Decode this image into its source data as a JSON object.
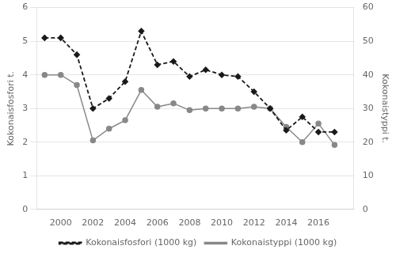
{
  "chart_data": {
    "type": "line",
    "x": [
      1999,
      2000,
      2001,
      2002,
      2003,
      2004,
      2005,
      2006,
      2007,
      2008,
      2009,
      2010,
      2011,
      2012,
      2013,
      2014,
      2015,
      2016,
      2017
    ],
    "series": [
      {
        "name": "Kokonaisfosfori (1000 kg)",
        "color": "#1a1a1a",
        "line_style": "dashed",
        "marker": "diamond",
        "values": [
          5.1,
          5.1,
          4.6,
          3.0,
          3.3,
          3.8,
          5.3,
          4.3,
          4.4,
          3.95,
          4.15,
          4.0,
          3.95,
          3.5,
          3.0,
          2.35,
          2.75,
          2.3,
          2.3
        ]
      },
      {
        "name": "Kokonaistyppi (1000 kg)",
        "color": "#888888",
        "line_style": "solid",
        "marker": "circle",
        "axis": "y2",
        "values": [
          40.0,
          40.0,
          37.0,
          20.5,
          24.0,
          26.5,
          35.5,
          30.5,
          31.5,
          29.5,
          30.0,
          30.0,
          30.0,
          30.5,
          30.0,
          24.5,
          20.0,
          25.5,
          19.2
        ]
      }
    ],
    "ylabel": "Kokonaisfosfori t.",
    "y2label": "Kokonaistyppi t.",
    "xlim": [
      1998.5,
      2018.2
    ],
    "xticks": [
      2000,
      2002,
      2004,
      2006,
      2008,
      2010,
      2012,
      2014,
      2016
    ],
    "ylim": [
      0,
      6
    ],
    "yticks": [
      0,
      1,
      2,
      3,
      4,
      5,
      6
    ],
    "y2lim": [
      0,
      60
    ],
    "y2ticks": [
      0,
      10,
      20,
      30,
      40,
      50,
      60
    ],
    "grid": true,
    "legend": "bottom"
  }
}
